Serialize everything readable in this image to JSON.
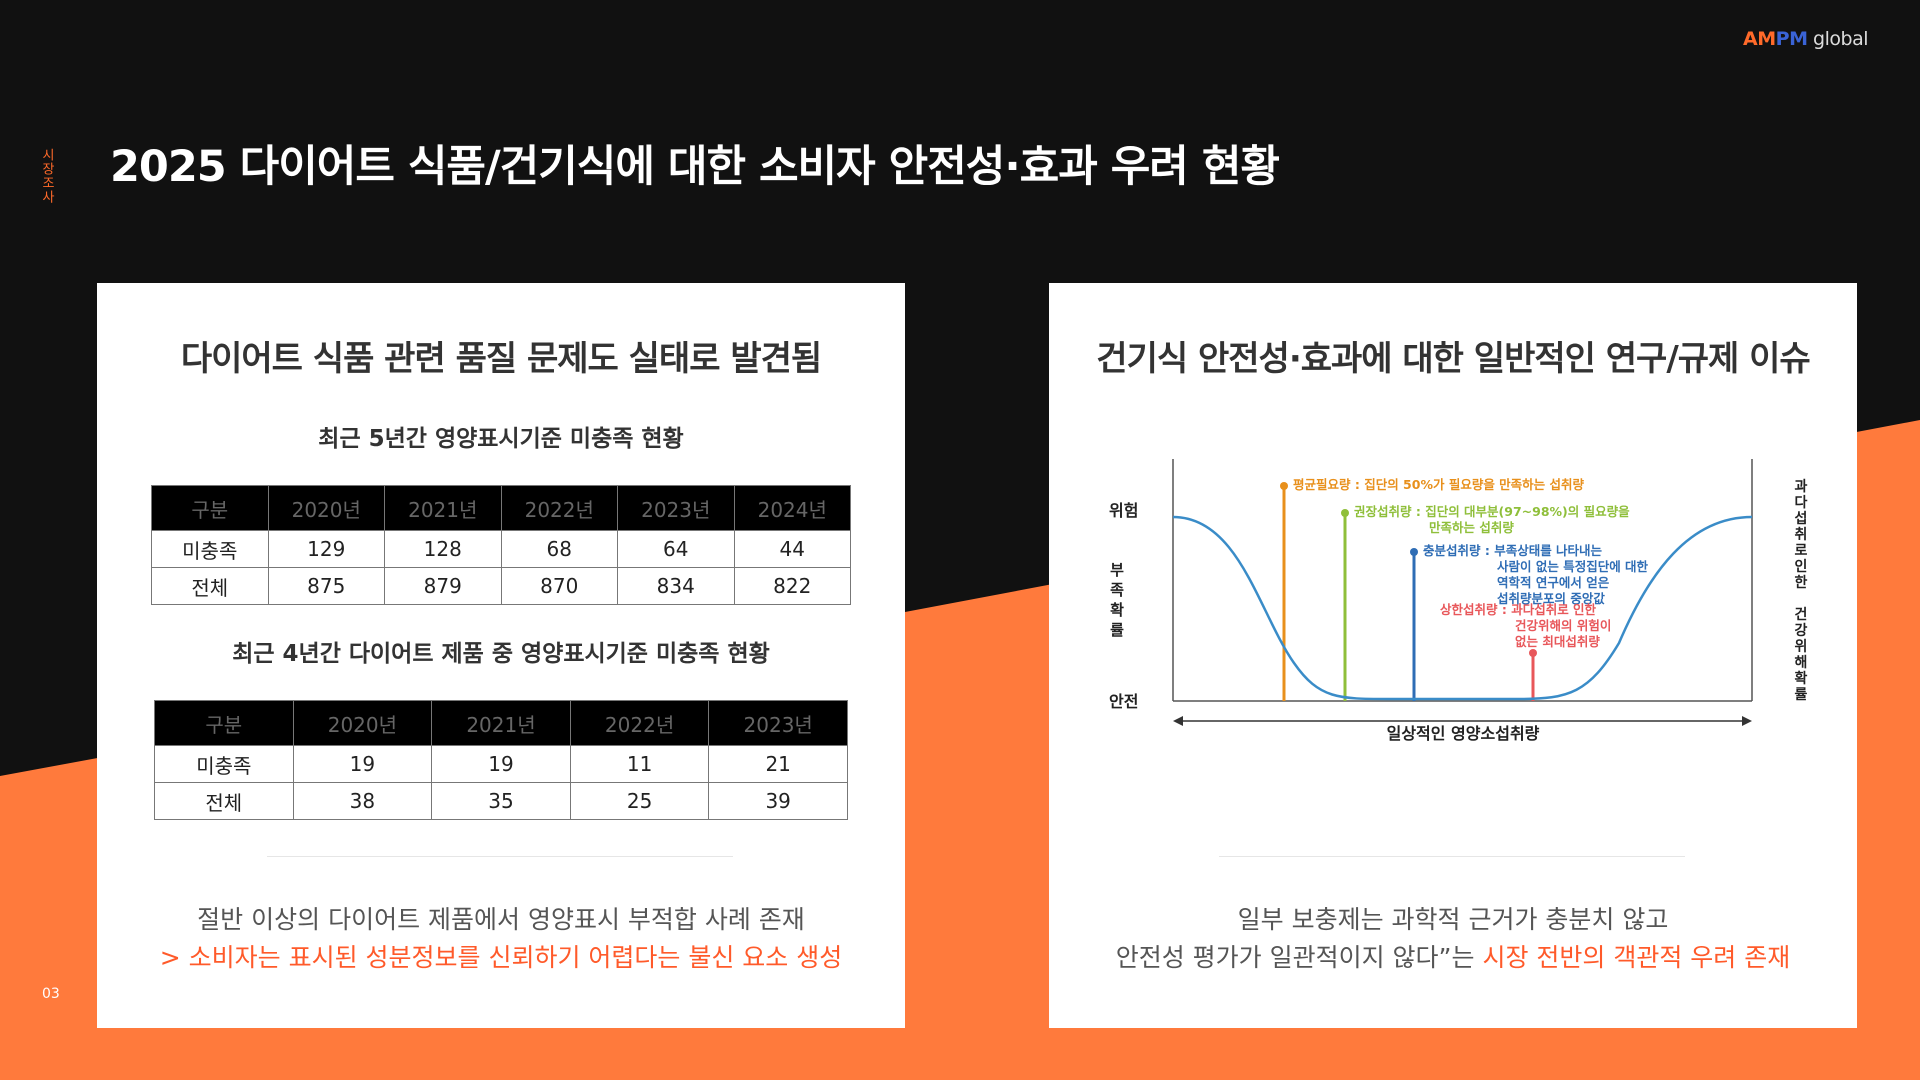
{
  "brand": {
    "part1": "AM",
    "part2": "PM",
    "part3": " global"
  },
  "section_label": "시장조사",
  "page_title": "2025 다이어트 식품/건기식에 대한 소비자 안전성·효과 우려 현황",
  "page_number": "03",
  "colors": {
    "accent": "#ff7a3c",
    "dark": "#111111",
    "highlight": "#ff5a2a"
  },
  "left_card": {
    "title": "다이어트 식품 관련 품질 문제도 실태로 발견됨",
    "table1": {
      "title": "최근 5년간 영양표시기준 미충족 현황",
      "headers": [
        "구분",
        "2020년",
        "2021년",
        "2022년",
        "2023년",
        "2024년"
      ],
      "rows": [
        [
          "미충족",
          "129",
          "128",
          "68",
          "64",
          "44"
        ],
        [
          "전체",
          "875",
          "879",
          "870",
          "834",
          "822"
        ]
      ]
    },
    "table2": {
      "title": "최근 4년간 다이어트 제품 중 영양표시기준 미충족 현황",
      "headers": [
        "구분",
        "2020년",
        "2021년",
        "2022년",
        "2023년"
      ],
      "rows": [
        [
          "미충족",
          "19",
          "19",
          "11",
          "21"
        ],
        [
          "전체",
          "38",
          "35",
          "25",
          "39"
        ]
      ]
    },
    "conclusion_line1": "절반 이상의 다이어트 제품에서 영양표시 부적합 사례 존재",
    "conclusion_line2": "> 소비자는 표시된 성분정보를 신뢰하기 어렵다는 불신 요소 생성"
  },
  "right_card": {
    "title": "건기식 안전성·효과에 대한 일반적인 연구/규제 이슈",
    "diagram": {
      "y_top_label": "위험",
      "y_bottom_label": "안전",
      "y_left_axis": [
        "부",
        "족",
        "확",
        "률"
      ],
      "y_right_axis": [
        "과",
        "다",
        "섭",
        "취",
        "로",
        "인",
        "한",
        "",
        "건",
        "강",
        "위",
        "해",
        "확",
        "률"
      ],
      "x_label": "일상적인 영양소섭취량",
      "markers": [
        {
          "lines": [
            "평균필요량 : 집단의 50%가 필요량을 만족하는 섭취량"
          ],
          "color": "#e8901c"
        },
        {
          "lines": [
            "권장섭취량 : 집단의 대부분(97~98%)의 필요량을",
            "만족하는 섭취량"
          ],
          "color": "#8fbf3a"
        },
        {
          "lines": [
            "충분섭취량 : 부족상태를 나타내는",
            "사람이 없는 특정집단에 대한",
            "역학적 연구에서 얻은",
            "섭취량분포의 중앙값"
          ],
          "color": "#2f6db5"
        },
        {
          "lines": [
            "상한섭취량 : 과다섭취로 인한",
            "건강위해의 위험이",
            "없는 최대섭취량"
          ],
          "color": "#e8575a"
        }
      ],
      "curve_color": "#3a8cc8"
    },
    "conclusion_line1": "일부 보충제는 과학적 근거가 충분치 않고",
    "conclusion_line2a": "안전성 평가가 일관적이지 않다”는 ",
    "conclusion_line2b": "시장 전반의 객관적 우려 존재"
  }
}
